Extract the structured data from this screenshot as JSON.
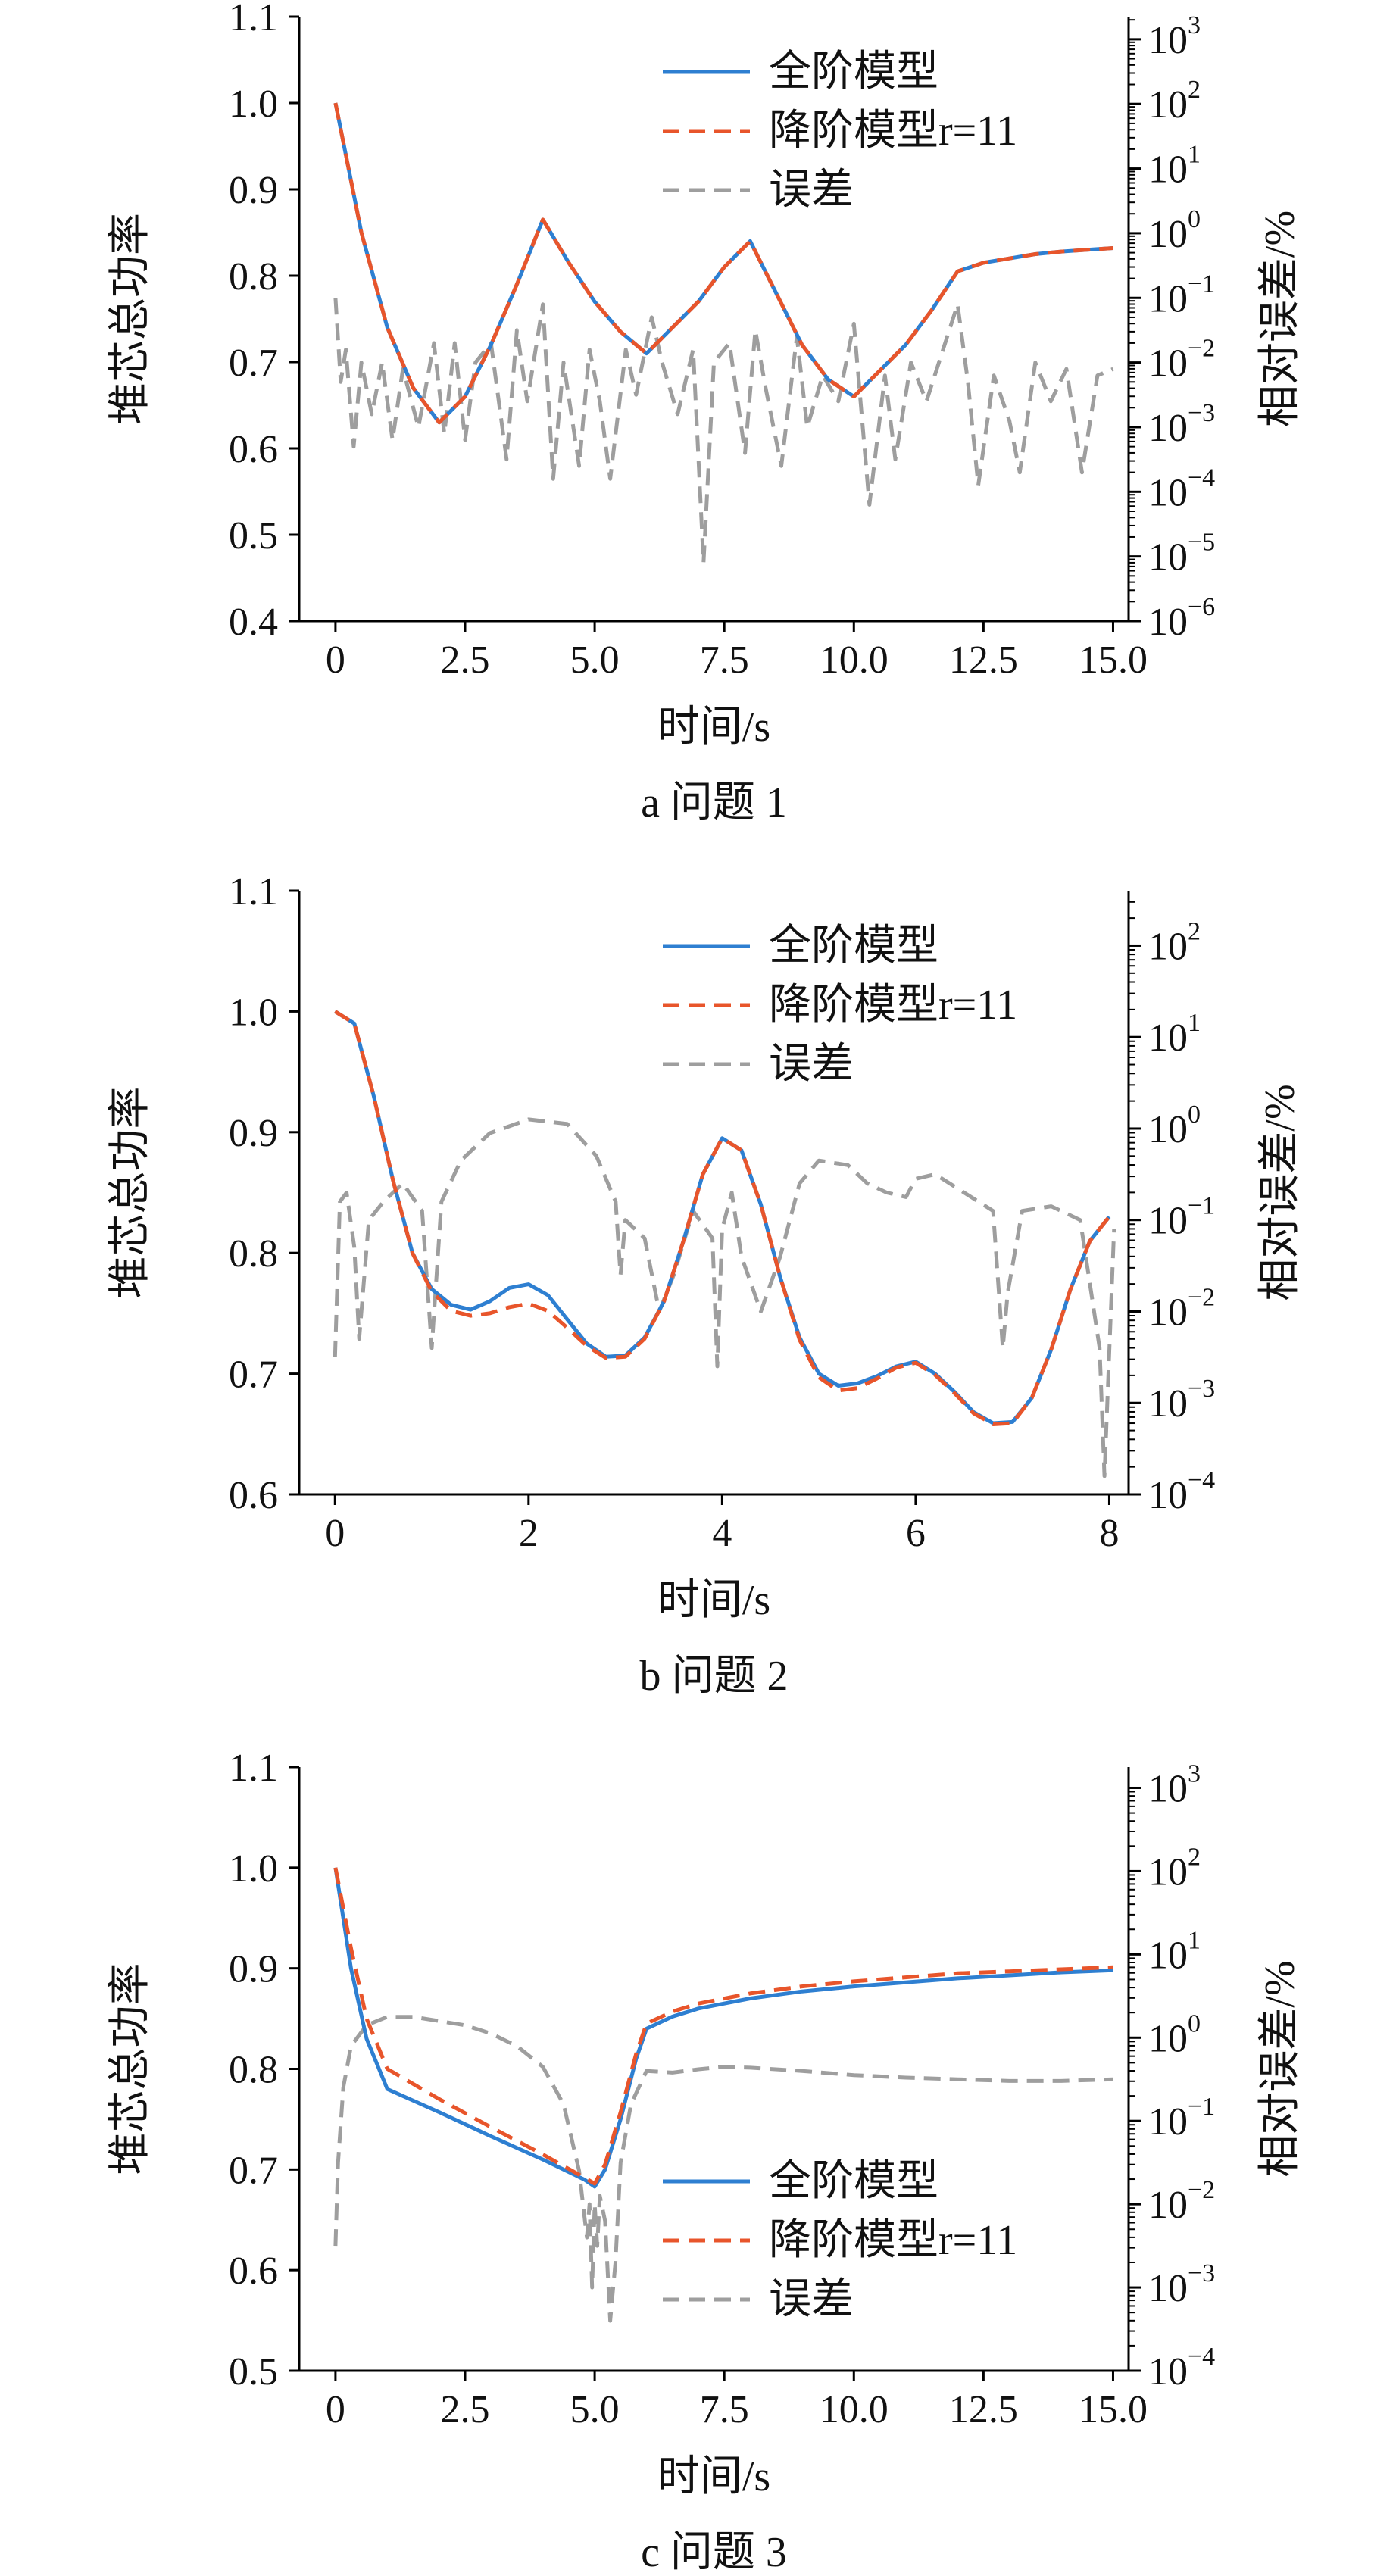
{
  "figure": {
    "caption_prefixes": [
      "a",
      "b",
      "c"
    ]
  },
  "chart_data": [
    {
      "type": "line",
      "caption": "a  问题 1",
      "xlabel": "时间/s",
      "ylabel": "堆芯总功率",
      "y2label": "相对误差/%",
      "xlim": [
        -0.7,
        15.3
      ],
      "ylim": [
        0.4,
        1.1
      ],
      "y2lim_log10": [
        -6,
        3.35
      ],
      "x_ticks": [
        "0",
        "2.5",
        "5.0",
        "7.5",
        "10.0",
        "12.5",
        "15.0"
      ],
      "x_tick_values": [
        0,
        2.5,
        5,
        7.5,
        10,
        12.5,
        15
      ],
      "y_ticks": [
        "0.4",
        "0.5",
        "0.6",
        "0.7",
        "0.8",
        "0.9",
        "1.0",
        "1.1"
      ],
      "y_tick_values": [
        0.4,
        0.5,
        0.6,
        0.7,
        0.8,
        0.9,
        1.0,
        1.1
      ],
      "y2_tick_exponents": [
        -6,
        -5,
        -4,
        -3,
        -2,
        -1,
        0,
        1,
        2,
        3
      ],
      "legend_position": "top-right",
      "series": [
        {
          "name": "全阶模型",
          "axis": "left",
          "color": "#2e7fd1",
          "dash": "solid",
          "x": [
            0,
            0.5,
            1,
            1.5,
            2,
            2.5,
            3,
            3.5,
            4,
            4.5,
            5,
            5.5,
            6,
            6.5,
            7,
            7.5,
            8,
            8.5,
            9,
            9.5,
            10,
            10.5,
            11,
            11.5,
            12,
            12.5,
            13,
            13.5,
            14,
            14.5,
            15
          ],
          "y": [
            1.0,
            0.85,
            0.74,
            0.67,
            0.63,
            0.66,
            0.72,
            0.79,
            0.865,
            0.815,
            0.77,
            0.735,
            0.71,
            0.74,
            0.77,
            0.81,
            0.84,
            0.78,
            0.72,
            0.68,
            0.66,
            0.69,
            0.72,
            0.76,
            0.805,
            0.815,
            0.82,
            0.825,
            0.828,
            0.83,
            0.832
          ]
        },
        {
          "name": "降阶模型r=11",
          "axis": "left",
          "color": "#e8552b",
          "dash": "dashed",
          "x": [
            0,
            0.5,
            1,
            1.5,
            2,
            2.5,
            3,
            3.5,
            4,
            4.5,
            5,
            5.5,
            6,
            6.5,
            7,
            7.5,
            8,
            8.5,
            9,
            9.5,
            10,
            10.5,
            11,
            11.5,
            12,
            12.5,
            13,
            13.5,
            14,
            14.5,
            15
          ],
          "y": [
            1.0,
            0.85,
            0.74,
            0.67,
            0.63,
            0.66,
            0.72,
            0.79,
            0.865,
            0.815,
            0.77,
            0.735,
            0.71,
            0.74,
            0.77,
            0.81,
            0.84,
            0.78,
            0.72,
            0.68,
            0.66,
            0.69,
            0.72,
            0.76,
            0.805,
            0.815,
            0.82,
            0.825,
            0.828,
            0.83,
            0.832
          ]
        },
        {
          "name": "误差",
          "axis": "right",
          "color": "#9e9e9e",
          "dash": "dashed",
          "x": [
            0,
            0.1,
            0.2,
            0.35,
            0.5,
            0.7,
            0.9,
            1.1,
            1.3,
            1.6,
            1.9,
            2.1,
            2.3,
            2.5,
            2.7,
            3.0,
            3.3,
            3.5,
            3.7,
            4.0,
            4.2,
            4.4,
            4.7,
            4.9,
            5.1,
            5.3,
            5.6,
            5.8,
            6.1,
            6.3,
            6.6,
            6.9,
            7.1,
            7.3,
            7.6,
            7.9,
            8.1,
            8.3,
            8.6,
            8.9,
            9.1,
            9.4,
            9.7,
            10.0,
            10.3,
            10.6,
            10.8,
            11.1,
            11.4,
            11.8,
            12.0,
            12.2,
            12.4,
            12.7,
            13.0,
            13.2,
            13.5,
            13.8,
            14.1,
            14.4,
            14.7,
            15.0
          ],
          "log10_y": [
            -1.0,
            -2.3,
            -1.8,
            -3.3,
            -2.0,
            -2.8,
            -2.0,
            -3.2,
            -2.1,
            -3.0,
            -1.7,
            -3.1,
            -1.7,
            -3.2,
            -2.0,
            -1.7,
            -3.5,
            -1.5,
            -2.6,
            -1.1,
            -3.8,
            -2.0,
            -3.6,
            -1.8,
            -2.6,
            -3.8,
            -1.8,
            -2.5,
            -1.3,
            -2.0,
            -2.8,
            -1.8,
            -5.1,
            -2.0,
            -1.7,
            -3.4,
            -1.5,
            -2.4,
            -3.6,
            -1.6,
            -3.0,
            -2.2,
            -2.6,
            -1.4,
            -4.2,
            -2.2,
            -3.5,
            -2.0,
            -2.6,
            -1.6,
            -1.1,
            -2.3,
            -3.9,
            -2.2,
            -2.9,
            -3.7,
            -2.0,
            -2.6,
            -2.1,
            -3.7,
            -2.2,
            -2.1
          ]
        }
      ]
    },
    {
      "type": "line",
      "caption": "b  问题 2",
      "xlabel": "时间/s",
      "ylabel": "堆芯总功率",
      "y2label": "相对误差/%",
      "xlim": [
        -0.37,
        8.2
      ],
      "ylim": [
        0.6,
        1.1
      ],
      "y2lim_log10": [
        -4,
        2.6
      ],
      "x_ticks": [
        "0",
        "2",
        "4",
        "6",
        "8"
      ],
      "x_tick_values": [
        0,
        2,
        4,
        6,
        8
      ],
      "y_ticks": [
        "0.6",
        "0.7",
        "0.8",
        "0.9",
        "1.0",
        "1.1"
      ],
      "y_tick_values": [
        0.6,
        0.7,
        0.8,
        0.9,
        1.0,
        1.1
      ],
      "y2_tick_exponents": [
        -4,
        -3,
        -2,
        -1,
        0,
        1,
        2
      ],
      "legend_position": "top-right",
      "series": [
        {
          "name": "全阶模型",
          "axis": "left",
          "color": "#2e7fd1",
          "dash": "solid",
          "x": [
            0,
            0.2,
            0.4,
            0.6,
            0.8,
            1.0,
            1.2,
            1.4,
            1.6,
            1.8,
            2.0,
            2.2,
            2.4,
            2.6,
            2.8,
            3.0,
            3.2,
            3.4,
            3.6,
            3.8,
            4.0,
            4.2,
            4.4,
            4.6,
            4.8,
            5.0,
            5.2,
            5.4,
            5.6,
            5.8,
            6.0,
            6.2,
            6.4,
            6.6,
            6.8,
            7.0,
            7.2,
            7.4,
            7.6,
            7.8,
            8.0
          ],
          "y": [
            1.0,
            0.99,
            0.93,
            0.86,
            0.8,
            0.77,
            0.757,
            0.753,
            0.76,
            0.771,
            0.774,
            0.765,
            0.745,
            0.725,
            0.714,
            0.715,
            0.73,
            0.76,
            0.81,
            0.865,
            0.895,
            0.885,
            0.84,
            0.78,
            0.73,
            0.7,
            0.69,
            0.692,
            0.698,
            0.706,
            0.71,
            0.7,
            0.685,
            0.668,
            0.659,
            0.66,
            0.68,
            0.72,
            0.77,
            0.81,
            0.83
          ]
        },
        {
          "name": "降阶模型r=11",
          "axis": "left",
          "color": "#e8552b",
          "dash": "dashed",
          "x": [
            0,
            0.2,
            0.4,
            0.6,
            0.8,
            1.0,
            1.2,
            1.4,
            1.6,
            1.8,
            2.0,
            2.2,
            2.4,
            2.6,
            2.8,
            3.0,
            3.2,
            3.4,
            3.6,
            3.8,
            4.0,
            4.2,
            4.4,
            4.6,
            4.8,
            5.0,
            5.2,
            5.4,
            5.6,
            5.8,
            6.0,
            6.2,
            6.4,
            6.6,
            6.8,
            7.0,
            7.2,
            7.4,
            7.6,
            7.8,
            8.0
          ],
          "y": [
            1.0,
            0.99,
            0.93,
            0.86,
            0.8,
            0.768,
            0.752,
            0.748,
            0.75,
            0.755,
            0.758,
            0.752,
            0.738,
            0.723,
            0.713,
            0.714,
            0.729,
            0.76,
            0.81,
            0.865,
            0.895,
            0.885,
            0.84,
            0.78,
            0.728,
            0.697,
            0.686,
            0.688,
            0.696,
            0.705,
            0.709,
            0.699,
            0.684,
            0.667,
            0.658,
            0.659,
            0.68,
            0.72,
            0.77,
            0.81,
            0.83
          ]
        },
        {
          "name": "误差",
          "axis": "right",
          "color": "#9e9e9e",
          "dash": "dashed",
          "x": [
            0,
            0.05,
            0.12,
            0.2,
            0.25,
            0.35,
            0.5,
            0.7,
            0.9,
            1.0,
            1.1,
            1.3,
            1.6,
            2.0,
            2.4,
            2.7,
            2.9,
            2.95,
            3.0,
            3.2,
            3.35,
            3.5,
            3.7,
            3.9,
            3.95,
            4.0,
            4.1,
            4.2,
            4.4,
            4.6,
            4.8,
            5.0,
            5.3,
            5.5,
            5.7,
            5.9,
            6.0,
            6.2,
            6.5,
            6.8,
            6.9,
            6.95,
            7.1,
            7.4,
            7.7,
            7.9,
            7.95,
            8.05
          ],
          "log10_y": [
            -2.5,
            -0.8,
            -0.7,
            -1.3,
            -2.3,
            -1.0,
            -0.8,
            -0.6,
            -0.9,
            -2.4,
            -0.8,
            -0.35,
            -0.05,
            0.1,
            0.05,
            -0.3,
            -0.8,
            -1.6,
            -1.0,
            -1.2,
            -2.0,
            -1.6,
            -0.9,
            -1.2,
            -2.6,
            -1.1,
            -0.7,
            -1.4,
            -2.0,
            -1.4,
            -0.6,
            -0.35,
            -0.4,
            -0.6,
            -0.7,
            -0.75,
            -0.55,
            -0.5,
            -0.7,
            -0.9,
            -2.4,
            -1.8,
            -0.9,
            -0.85,
            -1.0,
            -2.4,
            -3.8,
            -1.1
          ]
        }
      ]
    },
    {
      "type": "line",
      "caption": "c  问题 3",
      "xlabel": "时间/s",
      "ylabel": "堆芯总功率",
      "y2label": "相对误差/%",
      "xlim": [
        -0.7,
        15.3
      ],
      "ylim": [
        0.5,
        1.1
      ],
      "y2lim_log10": [
        -4,
        3.25
      ],
      "x_ticks": [
        "0",
        "2.5",
        "5.0",
        "7.5",
        "10.0",
        "12.5",
        "15.0"
      ],
      "x_tick_values": [
        0,
        2.5,
        5,
        7.5,
        10,
        12.5,
        15
      ],
      "y_ticks": [
        "0.5",
        "0.6",
        "0.7",
        "0.8",
        "0.9",
        "1.0",
        "1.1"
      ],
      "y_tick_values": [
        0.5,
        0.6,
        0.7,
        0.8,
        0.9,
        1.0,
        1.1
      ],
      "y2_tick_exponents": [
        -4,
        -3,
        -2,
        -1,
        0,
        1,
        2,
        3
      ],
      "legend_position": "bottom-right",
      "series": [
        {
          "name": "全阶模型",
          "axis": "left",
          "color": "#2e7fd1",
          "dash": "solid",
          "x": [
            0,
            0.3,
            0.6,
            1.0,
            2.0,
            3.0,
            4.0,
            4.8,
            5.0,
            5.2,
            5.5,
            5.8,
            6.0,
            6.5,
            7.0,
            8.0,
            9.0,
            10.0,
            11.0,
            12.0,
            13.0,
            14.0,
            15.0
          ],
          "y": [
            1.0,
            0.9,
            0.83,
            0.78,
            0.757,
            0.733,
            0.71,
            0.69,
            0.683,
            0.7,
            0.75,
            0.81,
            0.84,
            0.852,
            0.86,
            0.87,
            0.877,
            0.882,
            0.886,
            0.89,
            0.893,
            0.896,
            0.898
          ]
        },
        {
          "name": "降阶模型r=11",
          "axis": "left",
          "color": "#e8552b",
          "dash": "dashed",
          "x": [
            0,
            0.3,
            0.6,
            1.0,
            2.0,
            3.0,
            4.0,
            4.8,
            5.0,
            5.2,
            5.5,
            5.8,
            6.0,
            6.5,
            7.0,
            8.0,
            9.0,
            10.0,
            11.0,
            12.0,
            13.0,
            14.0,
            15.0
          ],
          "y": [
            1.0,
            0.92,
            0.85,
            0.8,
            0.77,
            0.742,
            0.715,
            0.692,
            0.686,
            0.705,
            0.757,
            0.815,
            0.845,
            0.857,
            0.865,
            0.875,
            0.882,
            0.887,
            0.891,
            0.895,
            0.897,
            0.899,
            0.901
          ]
        },
        {
          "name": "误差",
          "axis": "right",
          "color": "#9e9e9e",
          "dash": "dashed",
          "x": [
            0,
            0.05,
            0.15,
            0.3,
            0.6,
            1.0,
            1.5,
            2.0,
            2.5,
            3.0,
            3.5,
            4.0,
            4.4,
            4.7,
            4.85,
            4.9,
            4.95,
            5.0,
            5.05,
            5.1,
            5.2,
            5.3,
            5.4,
            5.5,
            5.7,
            6.0,
            6.5,
            7.0,
            7.5,
            8.0,
            9.0,
            10.0,
            11.0,
            12.0,
            13.0,
            14.0,
            15.0
          ],
          "log10_y": [
            -2.5,
            -1.5,
            -0.6,
            -0.1,
            0.15,
            0.25,
            0.25,
            0.2,
            0.15,
            0.05,
            -0.1,
            -0.35,
            -0.8,
            -1.6,
            -2.4,
            -2.0,
            -3.0,
            -2.0,
            -2.5,
            -1.9,
            -2.2,
            -3.4,
            -2.7,
            -1.5,
            -0.8,
            -0.4,
            -0.42,
            -0.38,
            -0.35,
            -0.36,
            -0.4,
            -0.45,
            -0.48,
            -0.5,
            -0.52,
            -0.52,
            -0.5
          ]
        }
      ]
    }
  ]
}
